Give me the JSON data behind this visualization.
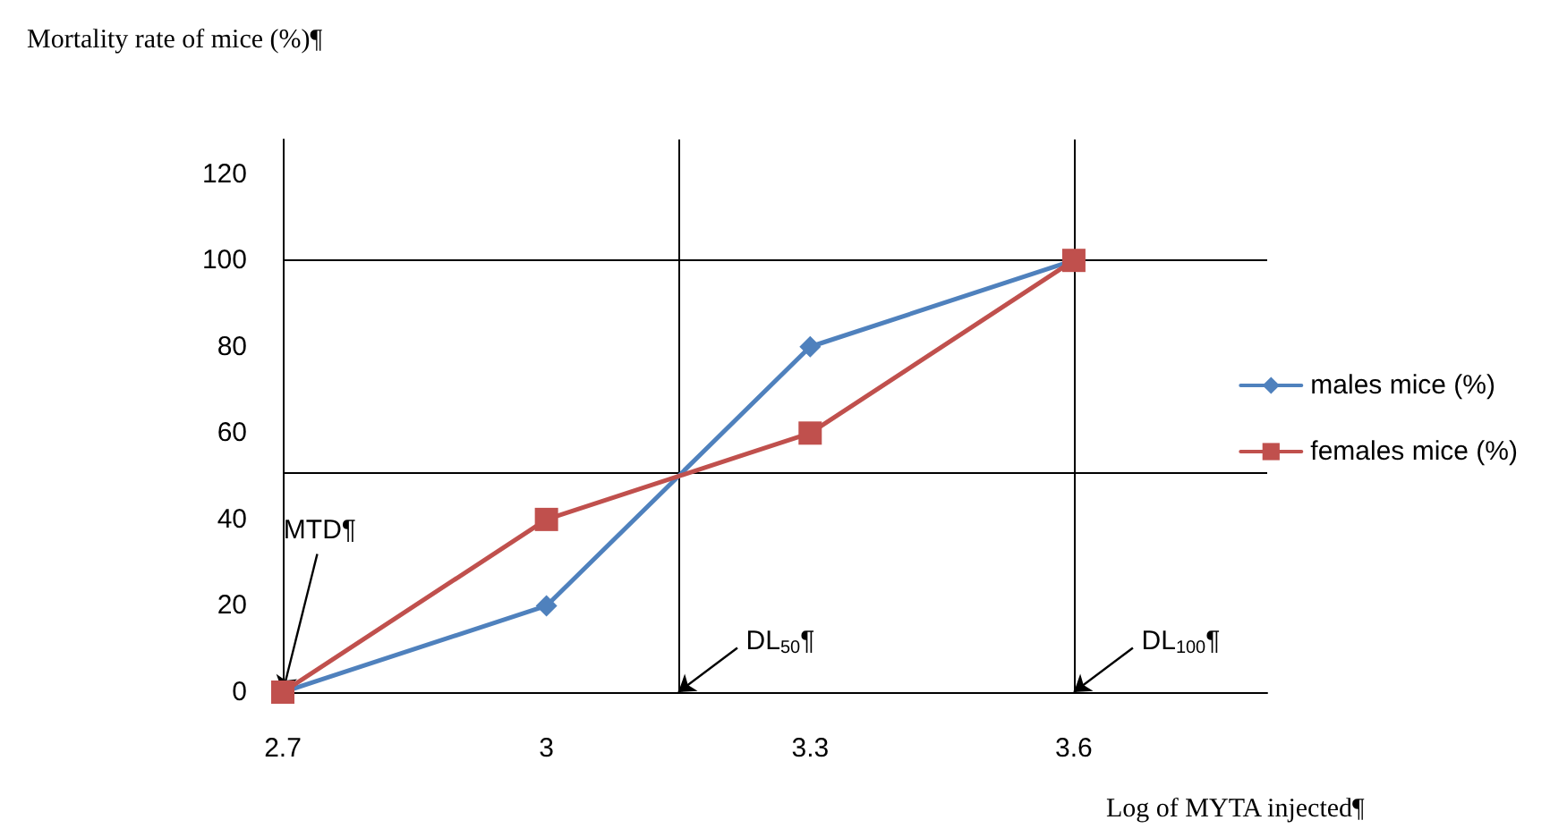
{
  "chart_data": {
    "type": "line",
    "xlabel": "Log of MYTA injected¶",
    "ylabel": "Mortality rate of mice (%)¶",
    "x": [
      2.7,
      3,
      3.3,
      3.6
    ],
    "series": [
      {
        "name": "males mice (%)",
        "color": "#4f81bd",
        "marker": "diamond",
        "values": [
          0,
          20,
          80,
          100
        ]
      },
      {
        "name": "females mice (%)",
        "color": "#c0504d",
        "marker": "square",
        "values": [
          0,
          40,
          60,
          100
        ]
      }
    ],
    "xlim": [
      2.7,
      3.82
    ],
    "xticks": [
      2.7,
      3,
      3.3,
      3.6
    ],
    "ylim": [
      0,
      128
    ],
    "yticks": [
      0,
      20,
      40,
      60,
      80,
      100,
      120
    ],
    "ref_lines": [
      {
        "axis": "y",
        "value": 100,
        "color": "#000000"
      },
      {
        "axis": "x",
        "value": 3.6,
        "color": "#000000"
      },
      {
        "axis": "y",
        "value": 51,
        "color": "#000000"
      },
      {
        "axis": "x",
        "value": 3.15,
        "color": "#000000"
      }
    ],
    "annotations": [
      {
        "text": "MTD¶",
        "x": 2.7,
        "y": 0
      },
      {
        "text": "DL$_{50}$¶",
        "x": 3.15,
        "y": 0
      },
      {
        "text": "DL$_{100}$¶",
        "x": 3.6,
        "y": 0
      }
    ],
    "grid": false,
    "legend": "right",
    "line_style": "solid"
  }
}
